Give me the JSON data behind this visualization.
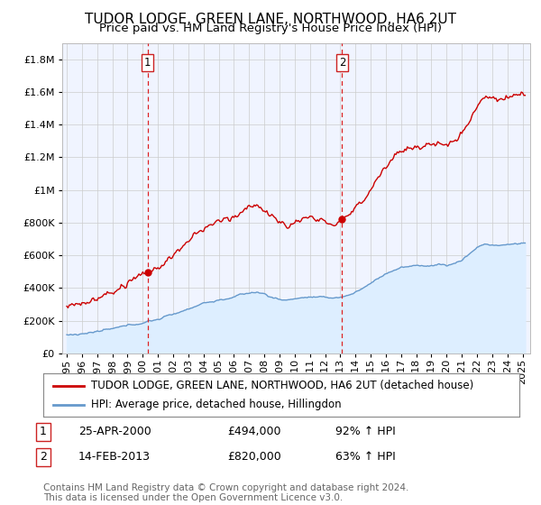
{
  "title": "TUDOR LODGE, GREEN LANE, NORTHWOOD, HA6 2UT",
  "subtitle": "Price paid vs. HM Land Registry's House Price Index (HPI)",
  "ytick_values": [
    0,
    200000,
    400000,
    600000,
    800000,
    1000000,
    1200000,
    1400000,
    1600000,
    1800000
  ],
  "ylim": [
    0,
    1900000
  ],
  "xlim_start": 1994.7,
  "xlim_end": 2025.5,
  "transaction1_x": 2000.32,
  "transaction1_y": 494000,
  "transaction1_label": "1",
  "transaction1_date": "25-APR-2000",
  "transaction1_price": "£494,000",
  "transaction1_hpi": "92% ↑ HPI",
  "transaction2_x": 2013.12,
  "transaction2_y": 820000,
  "transaction2_label": "2",
  "transaction2_date": "14-FEB-2013",
  "transaction2_price": "£820,000",
  "transaction2_hpi": "63% ↑ HPI",
  "red_line_color": "#cc0000",
  "blue_line_color": "#6699cc",
  "blue_fill_color": "#ddeeff",
  "vline_color": "#dd2222",
  "dot_color": "#cc0000",
  "legend_label_red": "TUDOR LODGE, GREEN LANE, NORTHWOOD, HA6 2UT (detached house)",
  "legend_label_blue": "HPI: Average price, detached house, Hillingdon",
  "footer_text": "Contains HM Land Registry data © Crown copyright and database right 2024.\nThis data is licensed under the Open Government Licence v3.0.",
  "background_color": "#ffffff",
  "plot_bg_color": "#f0f4ff",
  "grid_color": "#cccccc",
  "title_fontsize": 11,
  "subtitle_fontsize": 9.5,
  "tick_fontsize": 8,
  "legend_fontsize": 8.5,
  "footer_fontsize": 7.5
}
